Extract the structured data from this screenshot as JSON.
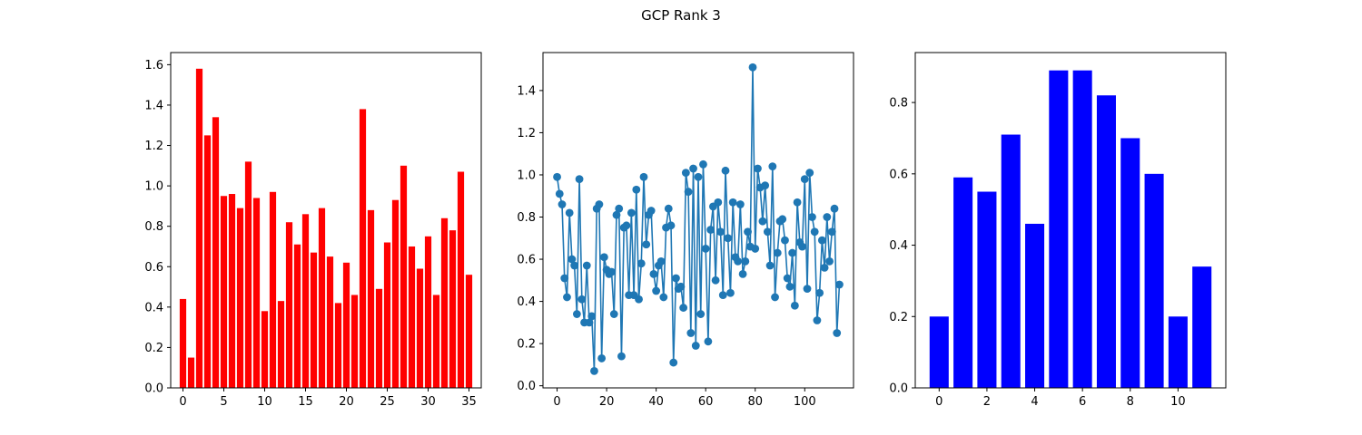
{
  "figure": {
    "title": "GCP Rank 3"
  },
  "chart_data": [
    {
      "type": "bar",
      "color": "#ff0000",
      "x": [
        0,
        1,
        2,
        3,
        4,
        5,
        6,
        7,
        8,
        9,
        10,
        11,
        12,
        13,
        14,
        15,
        16,
        17,
        18,
        19,
        20,
        21,
        22,
        23,
        24,
        25,
        26,
        27,
        28,
        29,
        30,
        31,
        32,
        33,
        34,
        35
      ],
      "values": [
        0.44,
        0.15,
        1.58,
        1.25,
        1.34,
        0.95,
        0.96,
        0.89,
        1.12,
        0.94,
        0.38,
        0.97,
        0.43,
        0.82,
        0.71,
        0.86,
        0.67,
        0.89,
        0.65,
        0.42,
        0.62,
        0.46,
        1.38,
        0.88,
        0.49,
        0.72,
        0.93,
        1.1,
        0.7,
        0.59,
        0.75,
        0.46,
        0.84,
        0.78,
        1.07,
        0.56
      ],
      "xlim": [
        -1.5,
        36.5
      ],
      "ylim": [
        0,
        1.66
      ],
      "xticks": [
        0,
        5,
        10,
        15,
        20,
        25,
        30,
        35
      ],
      "yticks": [
        0.0,
        0.2,
        0.4,
        0.6,
        0.8,
        1.0,
        1.2,
        1.4,
        1.6
      ],
      "ytick_labels": [
        "0.0",
        "0.2",
        "0.4",
        "0.6",
        "0.8",
        "1.0",
        "1.2",
        "1.4",
        "1.6"
      ],
      "grid": false
    },
    {
      "type": "line",
      "color": "#1f77b4",
      "marker": "circle",
      "x": [
        0,
        1,
        2,
        3,
        4,
        5,
        6,
        7,
        8,
        9,
        10,
        11,
        12,
        13,
        14,
        15,
        16,
        17,
        18,
        19,
        20,
        21,
        22,
        23,
        24,
        25,
        26,
        27,
        28,
        29,
        30,
        31,
        32,
        33,
        34,
        35,
        36,
        37,
        38,
        39,
        40,
        41,
        42,
        43,
        44,
        45,
        46,
        47,
        48,
        49,
        50,
        51,
        52,
        53,
        54,
        55,
        56,
        57,
        58,
        59,
        60,
        61,
        62,
        63,
        64,
        65,
        66,
        67,
        68,
        69,
        70,
        71,
        72,
        73,
        74,
        75,
        76,
        77,
        78,
        79,
        80,
        81,
        82,
        83,
        84,
        85,
        86,
        87,
        88,
        89,
        90,
        91,
        92,
        93,
        94,
        95,
        96,
        97,
        98,
        99,
        100,
        101,
        102,
        103,
        104,
        105,
        106,
        107,
        108,
        109,
        110,
        111,
        112,
        113,
        114
      ],
      "values": [
        0.99,
        0.91,
        0.86,
        0.51,
        0.42,
        0.82,
        0.6,
        0.57,
        0.34,
        0.98,
        0.41,
        0.3,
        0.57,
        0.3,
        0.33,
        0.07,
        0.84,
        0.86,
        0.13,
        0.61,
        0.55,
        0.53,
        0.54,
        0.34,
        0.81,
        0.84,
        0.14,
        0.75,
        0.76,
        0.43,
        0.82,
        0.43,
        0.93,
        0.41,
        0.58,
        0.99,
        0.67,
        0.81,
        0.83,
        0.53,
        0.45,
        0.57,
        0.59,
        0.42,
        0.75,
        0.84,
        0.76,
        0.11,
        0.51,
        0.46,
        0.47,
        0.37,
        1.01,
        0.92,
        0.25,
        1.03,
        0.19,
        0.99,
        0.34,
        1.05,
        0.65,
        0.21,
        0.74,
        0.85,
        0.5,
        0.87,
        0.73,
        0.43,
        1.02,
        0.7,
        0.44,
        0.87,
        0.61,
        0.59,
        0.86,
        0.53,
        0.59,
        0.73,
        0.66,
        1.51,
        0.65,
        1.03,
        0.94,
        0.78,
        0.95,
        0.73,
        0.57,
        1.04,
        0.42,
        0.63,
        0.78,
        0.79,
        0.69,
        0.51,
        0.47,
        0.63,
        0.38,
        0.87,
        0.68,
        0.66,
        0.98,
        0.46,
        1.01,
        0.8,
        0.73,
        0.31,
        0.44,
        0.69,
        0.56,
        0.8,
        0.59,
        0.73,
        0.84,
        0.25,
        0.48
      ],
      "xlim": [
        -5.7,
        119.7
      ],
      "ylim": [
        -0.01,
        1.58
      ],
      "xticks": [
        0,
        20,
        40,
        60,
        80,
        100
      ],
      "yticks": [
        0.0,
        0.2,
        0.4,
        0.6,
        0.8,
        1.0,
        1.2,
        1.4
      ],
      "ytick_labels": [
        "0.0",
        "0.2",
        "0.4",
        "0.6",
        "0.8",
        "1.0",
        "1.2",
        "1.4"
      ],
      "grid": false
    },
    {
      "type": "bar",
      "color": "#0000ff",
      "x": [
        0,
        1,
        2,
        3,
        4,
        5,
        6,
        7,
        8,
        9,
        10,
        11
      ],
      "values": [
        0.2,
        0.59,
        0.55,
        0.71,
        0.46,
        0.89,
        0.89,
        0.82,
        0.7,
        0.6,
        0.2,
        0.34
      ],
      "xlim": [
        -1.0,
        12.0
      ],
      "ylim": [
        0,
        0.94
      ],
      "xticks": [
        0,
        2,
        4,
        6,
        8,
        10
      ],
      "yticks": [
        0.0,
        0.2,
        0.4,
        0.6,
        0.8
      ],
      "ytick_labels": [
        "0.0",
        "0.2",
        "0.4",
        "0.6",
        "0.8"
      ],
      "grid": false
    }
  ]
}
